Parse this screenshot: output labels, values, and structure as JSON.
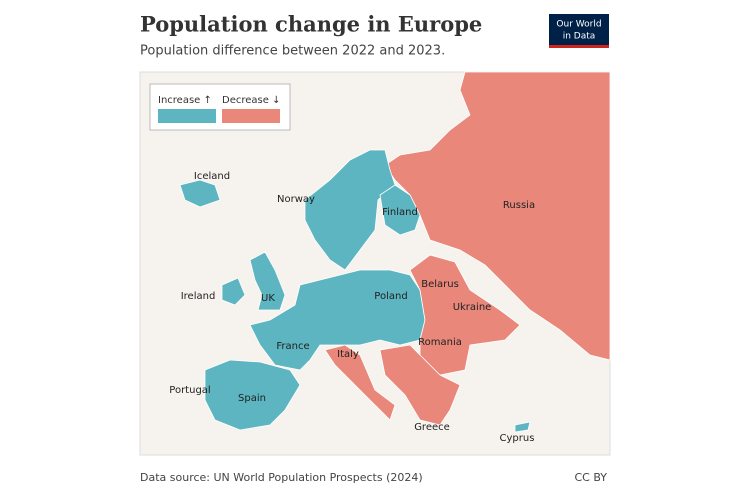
{
  "header": {
    "title": "Population change in Europe",
    "subtitle": "Population difference between 2022 and 2023.",
    "logo": [
      "Our World",
      "in Data"
    ]
  },
  "legend": [
    {
      "label": "Increase ↑",
      "color": "#5db5c1",
      "countries": [
        "Iceland",
        "Norway",
        "Finland",
        "Ireland",
        "UK",
        "Poland",
        "France",
        "Portugal",
        "Spain",
        "Cyprus"
      ]
    },
    {
      "label": "Decrease ↓",
      "color": "#e8877a",
      "countries": [
        "Russia",
        "Belarus",
        "Ukraine",
        "Romania",
        "Italy",
        "Greece"
      ]
    }
  ],
  "footer": {
    "source": "Data source: UN World Population Prospects (2024)",
    "license": "CC BY"
  }
}
